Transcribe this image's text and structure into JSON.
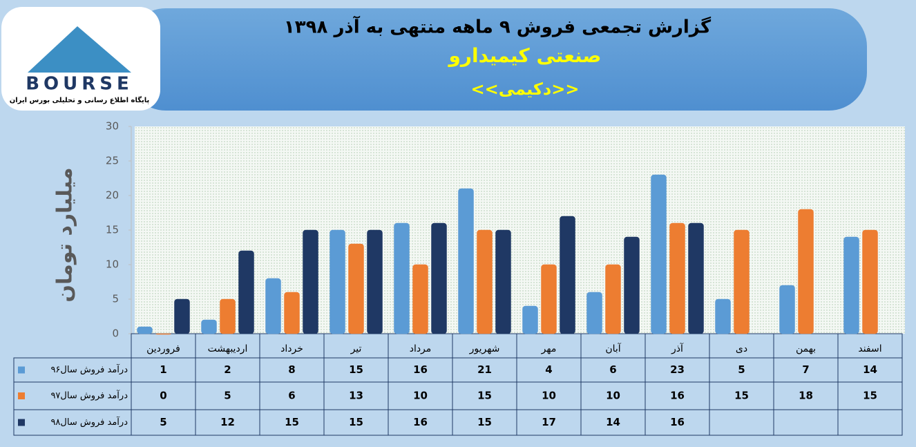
{
  "logo": {
    "text": "BOURSE",
    "tagline": "پایگاه اطلاع رسانی و تحلیلی بورس ایران"
  },
  "chart_data": {
    "type": "bar",
    "title": "گزارش تجمعی فروش ۹ ماهه منتهی به آذر ۱۳۹۸",
    "subtitle": "صنعتی کیمیدارو",
    "symbol": "<<دکیمی>>",
    "y_label": "میلیارد تومان",
    "categories": [
      "فروردین",
      "اردیبهشت",
      "خرداد",
      "تیر",
      "مرداد",
      "شهریور",
      "مهر",
      "آبان",
      "آذر",
      "دی",
      "بهمن",
      "اسفند"
    ],
    "series": [
      {
        "name": "درآمد فروش سال۹۶",
        "color": "#5b9bd5",
        "values": [
          1,
          2,
          8,
          15,
          16,
          21,
          4,
          6,
          23,
          5,
          7,
          14
        ]
      },
      {
        "name": "درآمد فروش سال۹۷",
        "color": "#ed7d31",
        "values": [
          0,
          5,
          6,
          13,
          10,
          15,
          10,
          10,
          16,
          15,
          18,
          15
        ]
      },
      {
        "name": "درآمد فروش سال۹۸",
        "color": "#1f3864",
        "values": [
          5,
          12,
          15,
          15,
          16,
          15,
          17,
          14,
          16,
          null,
          null,
          null
        ]
      }
    ],
    "ylim": [
      0,
      30
    ],
    "yticks": [
      0,
      5,
      10,
      15,
      20,
      25,
      30
    ],
    "grid": false
  }
}
